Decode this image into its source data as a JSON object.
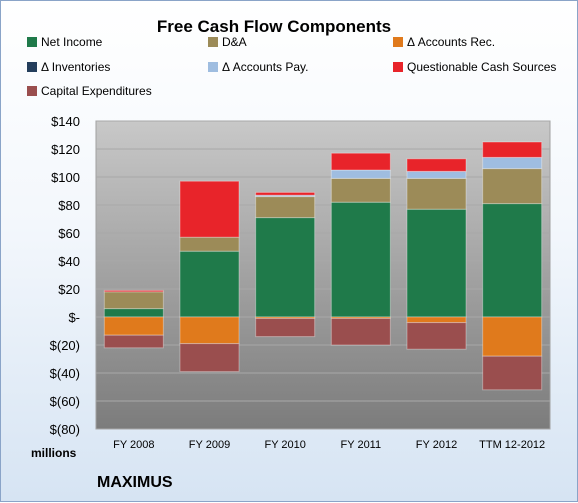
{
  "chart_data": {
    "type": "bar",
    "stacked": true,
    "title": "Free Cash Flow Components",
    "categories": [
      "FY 2008",
      "FY 2009",
      "FY 2010",
      "FY 2011",
      "FY 2012",
      "TTM 12-2012"
    ],
    "series": [
      {
        "name": "Net Income",
        "color": "#1f7a4a",
        "values": [
          6,
          47,
          71,
          82,
          77,
          81
        ]
      },
      {
        "name": "D&A",
        "color": "#9c8b58",
        "values": [
          12,
          10,
          15,
          17,
          22,
          25
        ]
      },
      {
        "name": "Δ Accounts Rec.",
        "color": "#e07a1c",
        "values": [
          -13,
          -19,
          -1,
          -1,
          -4,
          -28
        ]
      },
      {
        "name": "Δ Inventories",
        "color": "#243e5c",
        "values": [
          0,
          0,
          0,
          0,
          0,
          0
        ]
      },
      {
        "name": "Δ Accounts Pay.",
        "color": "#9fbde0",
        "values": [
          0,
          0,
          1,
          6,
          5,
          8
        ]
      },
      {
        "name": "Questionable Cash Sources",
        "color": "#e8242a",
        "values": [
          1,
          40,
          2,
          12,
          9,
          11
        ]
      },
      {
        "name": "Capital Expenditures",
        "color": "#9a4e4e",
        "values": [
          -9,
          -20,
          -13,
          -19,
          -19,
          -24
        ]
      }
    ],
    "y_ticks": [
      "$140",
      "$120",
      "$100",
      "$80",
      "$60",
      "$40",
      "$20",
      "$-",
      "$(20)",
      "$(40)",
      "$(60)",
      "$(80)"
    ],
    "ylim": [
      -80,
      140
    ],
    "y_step": 20,
    "grid": true,
    "legend_position": "top",
    "units_label": "millions",
    "company": "MAXIMUS"
  }
}
